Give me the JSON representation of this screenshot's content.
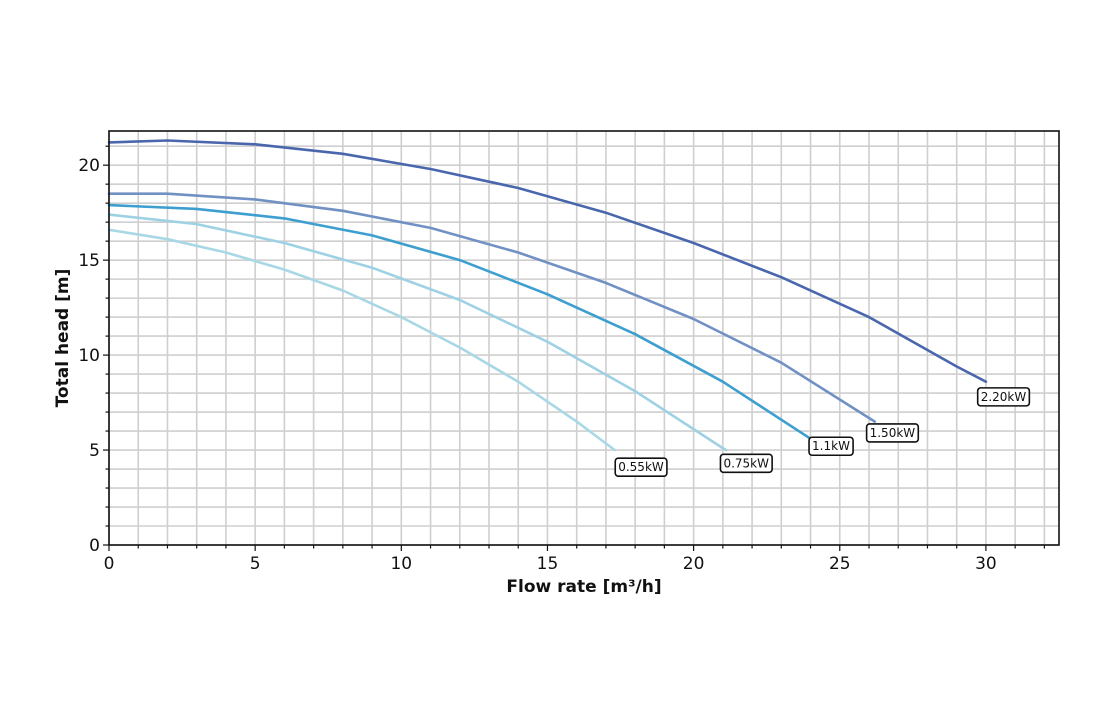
{
  "chart_data": {
    "type": "line",
    "title": "",
    "xlabel": "Flow rate [m³/h]",
    "ylabel": "Total head [m]",
    "xlim": [
      0,
      32.5
    ],
    "ylim": [
      0,
      21.8
    ],
    "x_ticks": [
      0,
      5,
      10,
      15,
      20,
      25,
      30
    ],
    "x_tick_labels": [
      "0",
      "5",
      "10",
      "15",
      "20",
      "25",
      "30"
    ],
    "y_ticks": [
      0,
      5,
      10,
      15,
      20
    ],
    "y_tick_labels": [
      "0",
      "5",
      "10",
      "15",
      "20"
    ],
    "grid": true,
    "x_minor_step": 1,
    "y_minor_step": 1,
    "legend": "none",
    "series": [
      {
        "name": "0.55kW",
        "color": "#a8d8e6",
        "points": [
          [
            0,
            16.6
          ],
          [
            2,
            16.1
          ],
          [
            4,
            15.4
          ],
          [
            6,
            14.5
          ],
          [
            8,
            13.4
          ],
          [
            10,
            12.0
          ],
          [
            12,
            10.4
          ],
          [
            14,
            8.6
          ],
          [
            16,
            6.5
          ],
          [
            17.3,
            5.0
          ]
        ],
        "label": "0.55kW",
        "label_at": [
          18.2,
          4.1
        ]
      },
      {
        "name": "0.75kW",
        "color": "#9fd1e4",
        "points": [
          [
            0,
            17.4
          ],
          [
            3,
            16.9
          ],
          [
            6,
            15.9
          ],
          [
            9,
            14.6
          ],
          [
            12,
            12.9
          ],
          [
            15,
            10.7
          ],
          [
            18,
            8.1
          ],
          [
            21,
            5.1
          ],
          [
            21.1,
            5.0
          ]
        ],
        "label": "0.75kW",
        "label_at": [
          21.8,
          4.3
        ]
      },
      {
        "name": "1.1kW",
        "color": "#3d9fcf",
        "points": [
          [
            0,
            17.9
          ],
          [
            3,
            17.7
          ],
          [
            6,
            17.2
          ],
          [
            9,
            16.3
          ],
          [
            12,
            15.0
          ],
          [
            15,
            13.2
          ],
          [
            18,
            11.1
          ],
          [
            21,
            8.6
          ],
          [
            24,
            5.6
          ]
        ],
        "label": "1.1kW",
        "label_at": [
          24.7,
          5.2
        ]
      },
      {
        "name": "1.50kW",
        "color": "#7191c4",
        "points": [
          [
            0,
            18.5
          ],
          [
            2,
            18.5
          ],
          [
            5,
            18.2
          ],
          [
            8,
            17.6
          ],
          [
            11,
            16.7
          ],
          [
            14,
            15.4
          ],
          [
            17,
            13.8
          ],
          [
            20,
            11.9
          ],
          [
            23,
            9.6
          ],
          [
            26.2,
            6.5
          ]
        ],
        "label": "1.50kW",
        "label_at": [
          26.8,
          5.9
        ]
      },
      {
        "name": "2.20kW",
        "color": "#4a67ad",
        "points": [
          [
            0,
            21.2
          ],
          [
            2,
            21.3
          ],
          [
            5,
            21.1
          ],
          [
            8,
            20.6
          ],
          [
            11,
            19.8
          ],
          [
            14,
            18.8
          ],
          [
            17,
            17.5
          ],
          [
            20,
            15.9
          ],
          [
            23,
            14.1
          ],
          [
            26,
            12.0
          ],
          [
            29,
            9.4
          ],
          [
            30,
            8.6
          ]
        ],
        "label": "2.20kW",
        "label_at": [
          30.6,
          7.8
        ]
      }
    ]
  }
}
